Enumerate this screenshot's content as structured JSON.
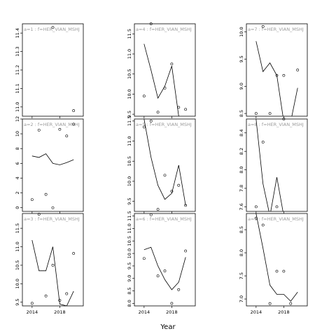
{
  "chart_data": [
    {
      "label": "a=1 : f=HER_VIAN_MSHJ",
      "type": "scatter",
      "ylim": [
        10.95,
        11.45
      ],
      "yticks": [
        11.0,
        11.1,
        11.2,
        11.3,
        11.4
      ],
      "points": [
        [
          2017,
          11.43
        ],
        [
          2020,
          10.98
        ]
      ],
      "line": []
    },
    {
      "label": "a=2 : f=HER_VIAN_MSHJ",
      "type": "line",
      "ylim": [
        -0.5,
        12
      ],
      "yticks": [
        0,
        2,
        4,
        6,
        8,
        10,
        12
      ],
      "points": [
        [
          2014,
          1.1
        ],
        [
          2015,
          10.5
        ],
        [
          2016,
          1.8
        ],
        [
          2017,
          0.0
        ],
        [
          2018,
          10.6
        ],
        [
          2019,
          9.7
        ],
        [
          2020,
          11.3
        ]
      ],
      "line": [
        [
          2014,
          7.0
        ],
        [
          2015,
          6.8
        ],
        [
          2016,
          7.3
        ],
        [
          2017,
          6.0
        ],
        [
          2018,
          5.8
        ],
        [
          2019,
          6.1
        ],
        [
          2020,
          6.5
        ]
      ]
    },
    {
      "label": "a=3 : f=HER_VIAN_MSHJ",
      "type": "line",
      "ylim": [
        9.4,
        11.9
      ],
      "yticks": [
        9.5,
        10.0,
        10.5,
        11.0,
        11.5
      ],
      "points": [
        [
          2014,
          9.47
        ],
        [
          2015,
          11.88
        ],
        [
          2016,
          9.67
        ],
        [
          2017,
          10.5
        ],
        [
          2018,
          9.55
        ],
        [
          2019,
          9.73
        ],
        [
          2020,
          10.82
        ]
      ],
      "line": [
        [
          2014,
          11.18
        ],
        [
          2015,
          10.35
        ],
        [
          2016,
          10.35
        ],
        [
          2017,
          11.0
        ],
        [
          2018,
          9.45
        ],
        [
          2019,
          9.4
        ],
        [
          2020,
          9.8
        ]
      ]
    },
    {
      "label": "a=4 : f=HER_VIAN_MSHJ",
      "type": "line",
      "ylim": [
        9.45,
        11.75
      ],
      "yticks": [
        9.5,
        10.0,
        10.5,
        11.0,
        11.5
      ],
      "points": [
        [
          2014,
          9.95
        ],
        [
          2015,
          11.75
        ],
        [
          2016,
          9.55
        ],
        [
          2017,
          10.15
        ],
        [
          2018,
          10.75
        ],
        [
          2019,
          9.67
        ],
        [
          2020,
          9.62
        ]
      ],
      "line": [
        [
          2014,
          11.25
        ],
        [
          2015,
          10.6
        ],
        [
          2016,
          9.9
        ],
        [
          2017,
          10.2
        ],
        [
          2018,
          10.7
        ],
        [
          2019,
          9.45
        ],
        [
          2020,
          9.4
        ]
      ]
    },
    {
      "label": "a=5 : f=HER_VIAN_MSHJ",
      "type": "line",
      "ylim": [
        9.25,
        11.55
      ],
      "yticks": [
        9.5,
        10.0,
        10.5,
        11.0,
        11.5
      ],
      "points": [
        [
          2014,
          11.35
        ],
        [
          2015,
          11.5
        ],
        [
          2016,
          9.3
        ],
        [
          2017,
          10.15
        ],
        [
          2018,
          9.75
        ],
        [
          2019,
          9.9
        ],
        [
          2020,
          9.4
        ]
      ],
      "line": [
        [
          2014,
          11.55
        ],
        [
          2015,
          10.6
        ],
        [
          2016,
          9.9
        ],
        [
          2017,
          9.55
        ],
        [
          2018,
          9.7
        ],
        [
          2019,
          10.4
        ],
        [
          2020,
          9.4
        ]
      ]
    },
    {
      "label": "a=6 : f=HER_VIAN_MSHJ",
      "type": "line",
      "ylim": [
        7.9,
        11.6
      ],
      "yticks": [
        8.0,
        8.5,
        9.0,
        9.5,
        10.0,
        10.5,
        11.0,
        11.5
      ],
      "points": [
        [
          2014,
          9.8
        ],
        [
          2015,
          11.55
        ],
        [
          2016,
          9.1
        ],
        [
          2017,
          9.3
        ],
        [
          2018,
          8.0
        ],
        [
          2019,
          8.55
        ],
        [
          2020,
          10.1
        ]
      ],
      "line": [
        [
          2014,
          10.15
        ],
        [
          2015,
          10.25
        ],
        [
          2016,
          9.5
        ],
        [
          2017,
          8.95
        ],
        [
          2018,
          8.55
        ],
        [
          2019,
          8.85
        ],
        [
          2020,
          9.85
        ]
      ]
    },
    {
      "label": "a=7 : f=HER_VIAN_MSHJ",
      "type": "line",
      "ylim": [
        8.45,
        10.15
      ],
      "yticks": [
        8.5,
        9.0,
        9.5,
        10.0
      ],
      "points": [
        [
          2014,
          8.5
        ],
        [
          2015,
          10.1
        ],
        [
          2016,
          8.5
        ],
        [
          2017,
          9.2
        ],
        [
          2018,
          9.2
        ],
        [
          2020,
          9.3
        ]
      ],
      "line": [
        [
          2014,
          9.83
        ],
        [
          2015,
          9.27
        ],
        [
          2016,
          9.43
        ],
        [
          2017,
          9.2
        ],
        [
          2018,
          8.35
        ],
        [
          2019,
          8.35
        ],
        [
          2020,
          8.97
        ]
      ]
    },
    {
      "label": "a=8 : f=HER_VIAN_MSHJ",
      "type": "line",
      "ylim": [
        7.55,
        8.55
      ],
      "yticks": [
        7.6,
        7.8,
        8.0,
        8.2,
        8.4
      ],
      "points": [
        [
          2014,
          7.6
        ],
        [
          2015,
          8.3
        ],
        [
          2017,
          7.6
        ],
        [
          2018,
          8.55
        ]
      ],
      "line": [
        [
          2014,
          8.55
        ],
        [
          2015,
          7.85
        ],
        [
          2016,
          7.5
        ],
        [
          2017,
          7.92
        ],
        [
          2018,
          7.5
        ]
      ]
    },
    {
      "label": "a=9 : f=HER_VIAN_MSHJ",
      "type": "line",
      "ylim": [
        6.85,
        8.85
      ],
      "yticks": [
        7.0,
        7.5,
        8.0,
        8.5
      ],
      "points": [
        [
          2014,
          8.75
        ],
        [
          2015,
          8.6
        ],
        [
          2016,
          6.9
        ],
        [
          2017,
          7.6
        ],
        [
          2018,
          7.6
        ],
        [
          2019,
          6.9
        ]
      ],
      "line": [
        [
          2014,
          8.85
        ],
        [
          2015,
          8.1
        ],
        [
          2016,
          7.3
        ],
        [
          2017,
          7.1
        ],
        [
          2018,
          7.1
        ],
        [
          2019,
          6.95
        ],
        [
          2020,
          7.15
        ]
      ]
    }
  ],
  "axes": {
    "x_range": [
      2012.6,
      2021.4
    ],
    "xticks": [
      2014,
      2018
    ],
    "xlabel": "Year"
  }
}
